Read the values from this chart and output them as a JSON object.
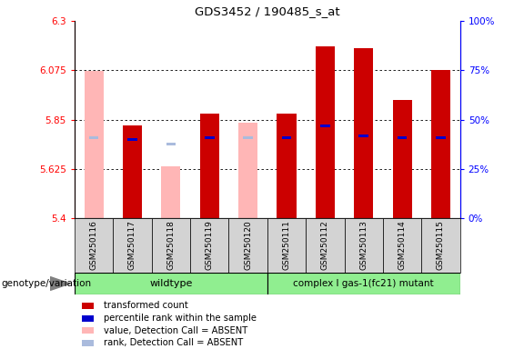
{
  "title": "GDS3452 / 190485_s_at",
  "samples": [
    "GSM250116",
    "GSM250117",
    "GSM250118",
    "GSM250119",
    "GSM250120",
    "GSM250111",
    "GSM250112",
    "GSM250113",
    "GSM250114",
    "GSM250115"
  ],
  "transformed_count": [
    null,
    5.825,
    null,
    5.875,
    null,
    5.875,
    6.185,
    6.175,
    5.94,
    6.075
  ],
  "percentile_rank": [
    null,
    39,
    null,
    40,
    null,
    40,
    46,
    41,
    40,
    40
  ],
  "absent_value": [
    6.07,
    null,
    5.635,
    null,
    5.835,
    null,
    null,
    null,
    null,
    null
  ],
  "absent_rank": [
    40,
    null,
    37,
    null,
    40,
    null,
    null,
    null,
    null,
    null
  ],
  "absent_flags": [
    true,
    false,
    true,
    false,
    true,
    false,
    false,
    false,
    false,
    false
  ],
  "ylim_left": [
    5.4,
    6.3
  ],
  "ylim_right": [
    0,
    100
  ],
  "yticks_left": [
    5.4,
    5.625,
    5.85,
    6.075,
    6.3
  ],
  "yticks_right": [
    0,
    25,
    50,
    75,
    100
  ],
  "bar_width": 0.5,
  "rank_bar_width": 0.25,
  "red_color": "#cc0000",
  "blue_color": "#0000cd",
  "pink_color": "#ffb6b6",
  "lightblue_color": "#aabbdd",
  "group_label": "genotype/variation",
  "wildtype_label": "wildtype",
  "mutant_label": "complex I gas-1(fc21) mutant",
  "group_color": "#90ee90",
  "legend_labels": [
    "transformed count",
    "percentile rank within the sample",
    "value, Detection Call = ABSENT",
    "rank, Detection Call = ABSENT"
  ]
}
